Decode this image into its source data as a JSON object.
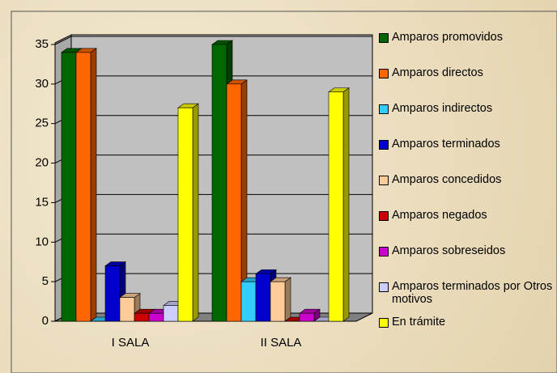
{
  "chart_data": {
    "type": "bar3d",
    "categories": [
      "I SALA",
      "II SALA"
    ],
    "series": [
      {
        "name": "Amparos promovidos",
        "color": "#006600",
        "values": [
          34,
          35
        ]
      },
      {
        "name": "Amparos directos",
        "color": "#ff6600",
        "values": [
          34,
          30
        ]
      },
      {
        "name": "Amparos indirectos",
        "color": "#33ccff",
        "values": [
          0,
          5
        ]
      },
      {
        "name": "Amparos terminados",
        "color": "#0000cc",
        "values": [
          7,
          6
        ]
      },
      {
        "name": "Amparos concedidos",
        "color": "#ffcc99",
        "values": [
          3,
          5
        ]
      },
      {
        "name": "Amparos negados",
        "color": "#cc0000",
        "values": [
          1,
          0
        ]
      },
      {
        "name": "Amparos sobreseidos",
        "color": "#cc00cc",
        "values": [
          1,
          1
        ]
      },
      {
        "name": "Amparos terminados por Otros motivos",
        "color": "#ccccff",
        "values": [
          2,
          0
        ]
      },
      {
        "name": "En trámite",
        "color": "#ffff00",
        "values": [
          27,
          29
        ]
      }
    ],
    "ylim": [
      0,
      35
    ],
    "yticks": [
      0,
      5,
      10,
      15,
      20,
      25,
      30,
      35
    ],
    "grid": true,
    "legend": "right"
  }
}
